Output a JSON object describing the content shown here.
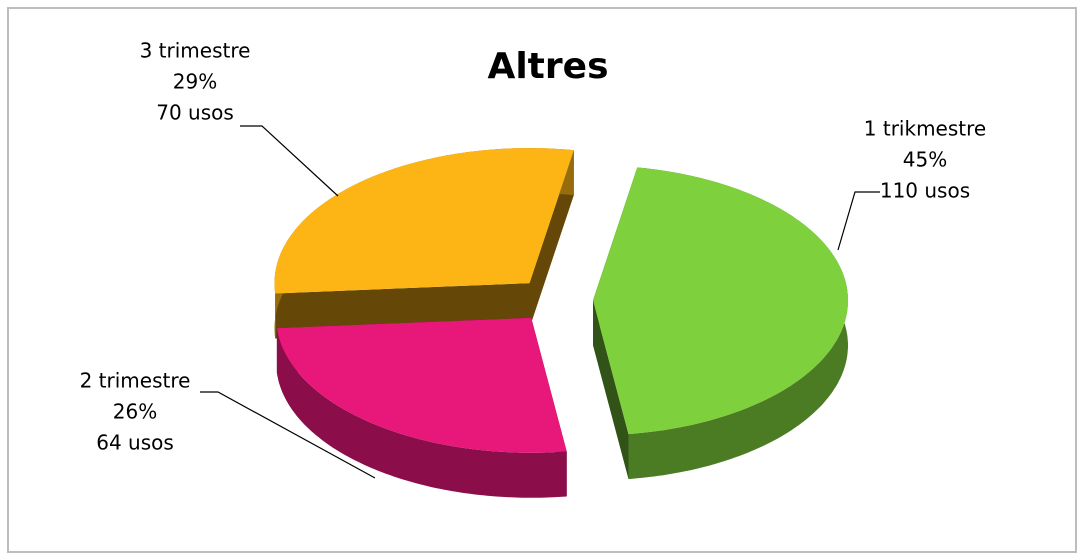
{
  "chart_data": {
    "type": "pie",
    "title": "Altres",
    "categories": [
      "1 trikmestre",
      "2 trimestre",
      "3 trimestre"
    ],
    "values": [
      45,
      26,
      29
    ],
    "value_labels": [
      "45%",
      "26%",
      "29%"
    ],
    "counts": [
      110,
      64,
      70
    ],
    "count_labels": [
      "110 usos",
      "64 usos",
      "70 usos"
    ],
    "colors": [
      "#7ed03c",
      "#e8177a",
      "#fdb515"
    ]
  }
}
